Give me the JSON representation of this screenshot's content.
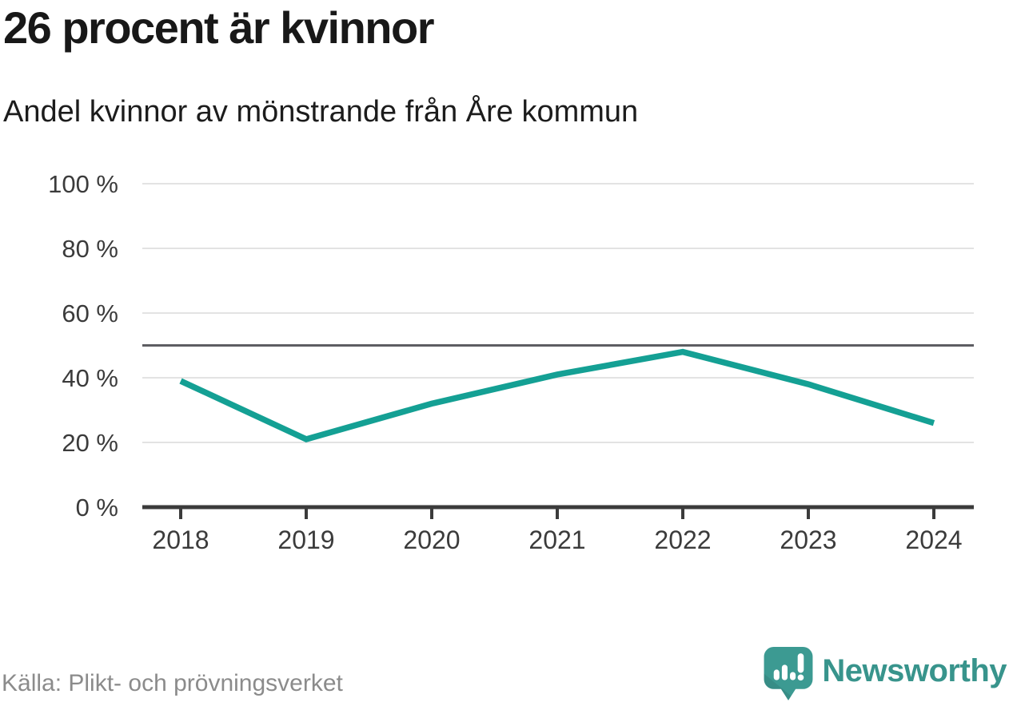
{
  "header": {
    "title": "26 procent är kvinnor",
    "subtitle": "Andel kvinnor av mönstrande från Åre kommun"
  },
  "footer": {
    "source": "Källa: Plikt- och prövningsverket",
    "brand": "Newsworthy"
  },
  "chart_data": {
    "type": "line",
    "x": [
      2018,
      2019,
      2020,
      2021,
      2022,
      2023,
      2024
    ],
    "series": [
      {
        "name": "Andel kvinnor av mönstrande",
        "values": [
          39,
          21,
          32,
          41,
          48,
          38,
          26
        ]
      }
    ],
    "unit": "%",
    "ylim": [
      0,
      100
    ],
    "yticks": [
      0,
      20,
      40,
      60,
      80,
      100
    ],
    "ytick_suffix": " %",
    "reference_line": 50,
    "grid": true,
    "legend": "none",
    "colors": {
      "line": "#14a094",
      "grid": "#e3e3e3",
      "reference": "#5d5d62",
      "axis": "#3b3b3b",
      "tick_label": "#3b3b3b"
    }
  },
  "branding": {
    "icon_fill": "#3c9a92",
    "text_color": "#38948c"
  }
}
